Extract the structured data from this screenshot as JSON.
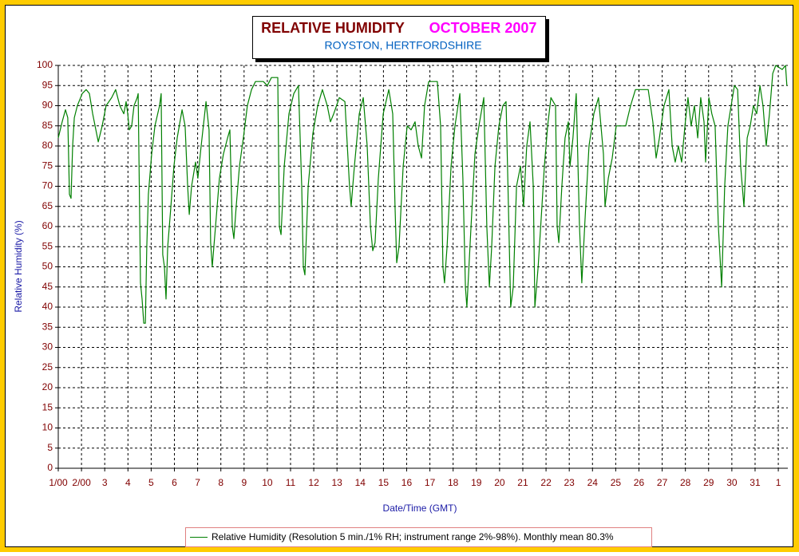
{
  "chart_data": {
    "type": "line",
    "title": "RELATIVE HUMIDITY",
    "title_month": "OCTOBER 2007",
    "subtitle": "ROYSTON, HERTFORDSHIRE",
    "x_label": "Date/Time (GMT)",
    "y_label": "Relative Humidity (%)",
    "xlim": [
      1,
      32.41
    ],
    "ylim": [
      0,
      100
    ],
    "grid": true,
    "xticks": [
      {
        "value": 1,
        "label": "1/00"
      },
      {
        "value": 2,
        "label": "2/00"
      },
      3,
      4,
      5,
      6,
      7,
      8,
      9,
      10,
      11,
      12,
      13,
      14,
      15,
      16,
      17,
      18,
      19,
      20,
      21,
      22,
      23,
      24,
      25,
      26,
      27,
      28,
      29,
      30,
      31,
      {
        "value": 32,
        "label": "1"
      }
    ],
    "yticks": [
      0,
      5,
      10,
      15,
      20,
      25,
      30,
      35,
      40,
      45,
      50,
      55,
      60,
      65,
      70,
      75,
      80,
      85,
      90,
      95,
      100
    ],
    "x": [
      1.0,
      1.17,
      1.31,
      1.41,
      1.48,
      1.55,
      1.62,
      1.69,
      1.82,
      2.03,
      2.2,
      2.34,
      2.48,
      2.62,
      2.72,
      2.89,
      3.06,
      3.3,
      3.47,
      3.65,
      3.82,
      3.92,
      3.99,
      4.06,
      4.16,
      4.26,
      4.4,
      4.44,
      4.54,
      4.61,
      4.68,
      4.75,
      4.81,
      4.88,
      5.02,
      5.16,
      5.36,
      5.43,
      5.5,
      5.57,
      5.64,
      5.71,
      5.85,
      5.98,
      6.12,
      6.33,
      6.46,
      6.57,
      6.64,
      6.74,
      6.91,
      7.01,
      7.15,
      7.36,
      7.49,
      7.56,
      7.63,
      7.77,
      7.94,
      8.11,
      8.29,
      8.39,
      8.49,
      8.56,
      8.66,
      8.8,
      8.97,
      9.14,
      9.32,
      9.49,
      9.83,
      10.0,
      10.18,
      10.45,
      10.52,
      10.59,
      10.73,
      10.93,
      11.14,
      11.34,
      11.48,
      11.55,
      11.62,
      11.76,
      11.96,
      12.17,
      12.37,
      12.58,
      12.72,
      12.86,
      13.1,
      13.34,
      13.54,
      13.61,
      13.75,
      13.96,
      14.13,
      14.3,
      14.44,
      14.54,
      14.64,
      14.78,
      14.99,
      15.23,
      15.4,
      15.5,
      15.57,
      15.67,
      15.85,
      16.02,
      16.19,
      16.36,
      16.5,
      16.64,
      16.77,
      16.95,
      17.32,
      17.46,
      17.56,
      17.63,
      17.74,
      17.91,
      18.08,
      18.29,
      18.42,
      18.53,
      18.59,
      18.77,
      18.94,
      19.11,
      19.32,
      19.45,
      19.56,
      19.66,
      19.8,
      19.97,
      20.14,
      20.28,
      20.42,
      20.48,
      20.59,
      20.73,
      20.9,
      21.03,
      21.17,
      21.31,
      21.45,
      21.52,
      21.66,
      21.79,
      21.93,
      22.07,
      22.21,
      22.41,
      22.48,
      22.55,
      22.68,
      22.82,
      22.96,
      23.03,
      23.16,
      23.3,
      23.44,
      23.54,
      23.68,
      23.85,
      24.06,
      24.26,
      24.47,
      24.54,
      24.68,
      24.85,
      25.02,
      25.23,
      25.43,
      25.64,
      25.85,
      26.4,
      26.6,
      26.74,
      26.88,
      27.08,
      27.29,
      27.43,
      27.56,
      27.7,
      27.84,
      27.98,
      28.11,
      28.25,
      28.39,
      28.53,
      28.66,
      28.8,
      28.87,
      29.01,
      29.14,
      29.28,
      29.42,
      29.56,
      29.69,
      29.83,
      29.97,
      30.11,
      30.25,
      30.38,
      30.52,
      30.66,
      30.79,
      30.93,
      31.07,
      31.21,
      31.34,
      31.48,
      31.62,
      31.76,
      31.89,
      32.17,
      32.31,
      32.37
    ],
    "series": [
      {
        "name": "Relative Humidity (Resolution 5 min./1% RH; instrument range 2%-98%). Monthly mean 80.3%",
        "color": "#008000",
        "values": [
          82,
          86,
          89,
          87,
          68,
          67,
          80,
          87,
          90,
          93,
          94,
          93,
          88,
          84,
          81,
          85,
          90,
          92,
          94,
          90,
          88,
          91,
          88,
          84,
          85,
          90,
          92,
          93,
          46,
          42,
          36,
          36,
          55,
          68,
          78,
          85,
          90,
          93,
          53,
          50,
          42,
          55,
          65,
          75,
          82,
          89,
          85,
          70,
          63,
          70,
          76,
          72,
          80,
          91,
          84,
          56,
          50,
          60,
          72,
          78,
          82,
          84,
          60,
          57,
          65,
          75,
          82,
          90,
          94,
          96,
          96,
          95,
          97,
          97,
          60,
          58,
          75,
          88,
          93,
          95,
          70,
          50,
          48,
          70,
          83,
          90,
          94,
          90,
          86,
          88,
          92,
          91,
          70,
          65,
          75,
          88,
          92,
          80,
          60,
          54,
          56,
          72,
          88,
          94,
          88,
          65,
          51,
          55,
          75,
          85,
          84,
          86,
          80,
          77,
          90,
          96,
          96,
          85,
          50,
          46,
          55,
          75,
          85,
          93,
          72,
          45,
          40,
          60,
          78,
          85,
          92,
          60,
          45,
          55,
          75,
          85,
          90,
          91,
          55,
          40,
          45,
          70,
          75,
          65,
          80,
          86,
          70,
          40,
          50,
          62,
          75,
          85,
          92,
          90,
          60,
          56,
          70,
          82,
          86,
          75,
          82,
          93,
          60,
          46,
          62,
          80,
          88,
          92,
          78,
          65,
          72,
          77,
          85,
          85,
          85,
          90,
          94,
          94,
          86,
          77,
          82,
          90,
          94,
          80,
          76,
          80,
          76,
          85,
          92,
          85,
          90,
          82,
          92,
          86,
          76,
          92,
          88,
          85,
          60,
          45,
          70,
          85,
          90,
          95,
          94,
          75,
          65,
          82,
          85,
          90,
          88,
          95,
          90,
          80,
          88,
          98,
          100,
          99,
          100,
          95
        ]
      }
    ]
  }
}
